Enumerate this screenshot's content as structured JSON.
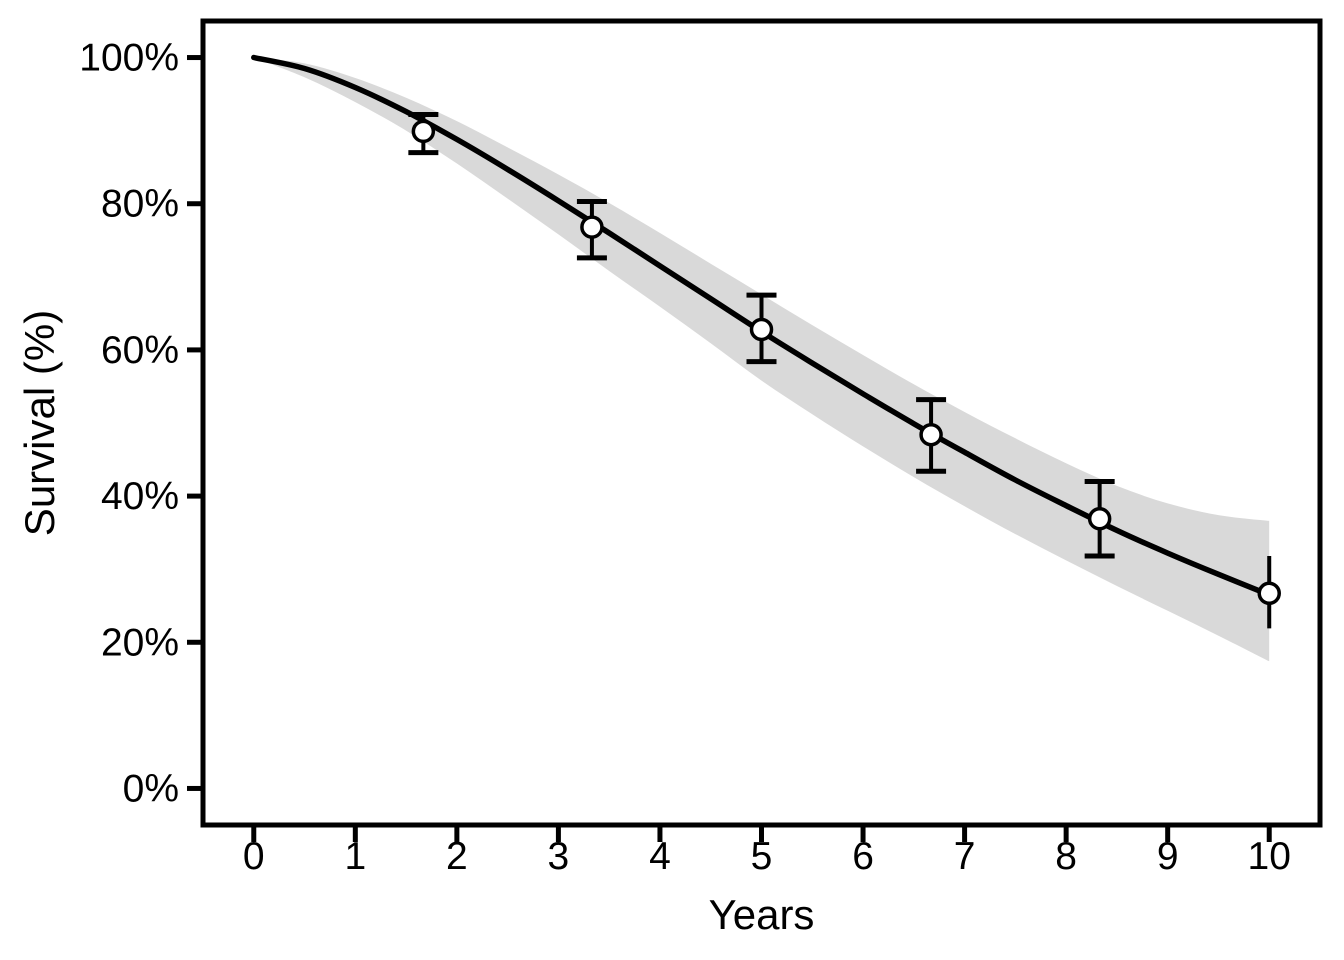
{
  "chart_data": {
    "type": "line",
    "title": "",
    "xlabel": "Years",
    "ylabel": "Survival (%)",
    "xlim": [
      -0.5,
      10.5
    ],
    "ylim": [
      -5,
      105
    ],
    "grid": "off",
    "legend": "none",
    "colors": {
      "curve": "#000000",
      "band": "#d9d9d9",
      "points": "#000000",
      "point_fill": "#ffffff",
      "text": "#000000",
      "background": "#ffffff"
    },
    "x_ticks": {
      "values": [
        0,
        1,
        2,
        3,
        4,
        5,
        6,
        7,
        8,
        9,
        10
      ],
      "labels": [
        "0",
        "1",
        "2",
        "3",
        "4",
        "5",
        "6",
        "7",
        "8",
        "9",
        "10"
      ]
    },
    "y_ticks": {
      "values": [
        0,
        20,
        40,
        60,
        80,
        100
      ],
      "labels": [
        "0%",
        "20%",
        "40%",
        "60%",
        "80%",
        "100%"
      ]
    },
    "curve": {
      "x": [
        0,
        0.5,
        1,
        1.5,
        2,
        2.5,
        3,
        3.5,
        4,
        4.5,
        5,
        5.5,
        6,
        6.5,
        7,
        7.5,
        8,
        8.5,
        9,
        9.5,
        10
      ],
      "y": [
        100,
        98.5,
        95.9,
        92.6,
        88.8,
        84.7,
        80.4,
        76.0,
        71.5,
        67.0,
        62.5,
        58.2,
        54.0,
        49.9,
        46.0,
        42.2,
        38.7,
        35.3,
        32.2,
        29.3,
        26.5
      ]
    },
    "band": {
      "x": [
        0,
        0.5,
        1,
        1.5,
        2,
        2.5,
        3,
        3.5,
        4,
        4.5,
        5,
        5.5,
        6,
        6.5,
        7,
        7.5,
        8,
        8.5,
        9,
        9.5,
        10
      ],
      "lo": [
        100,
        97.3,
        93.9,
        90.0,
        85.5,
        80.7,
        75.8,
        70.8,
        65.9,
        60.9,
        55.8,
        51.2,
        46.8,
        42.6,
        38.6,
        34.8,
        31.2,
        27.7,
        24.3,
        20.9,
        17.4
      ],
      "hi": [
        100,
        99.2,
        97.2,
        94.5,
        91.3,
        87.7,
        84.0,
        80.1,
        76.0,
        71.8,
        67.6,
        63.4,
        59.3,
        55.3,
        51.5,
        47.9,
        44.5,
        41.4,
        39.0,
        37.4,
        36.6
      ]
    },
    "points": [
      {
        "x": 1.67,
        "y": 89.9,
        "lo": 87.0,
        "hi": 92.2,
        "caps": true
      },
      {
        "x": 3.33,
        "y": 76.8,
        "lo": 72.6,
        "hi": 80.3,
        "caps": true
      },
      {
        "x": 5.0,
        "y": 62.8,
        "lo": 58.4,
        "hi": 67.5,
        "caps": true
      },
      {
        "x": 6.67,
        "y": 48.4,
        "lo": 43.4,
        "hi": 53.2,
        "caps": true
      },
      {
        "x": 8.33,
        "y": 36.9,
        "lo": 31.8,
        "hi": 42.0,
        "caps": true
      },
      {
        "x": 10.0,
        "y": 26.7,
        "lo": 21.9,
        "hi": 31.8,
        "caps": false
      }
    ]
  }
}
